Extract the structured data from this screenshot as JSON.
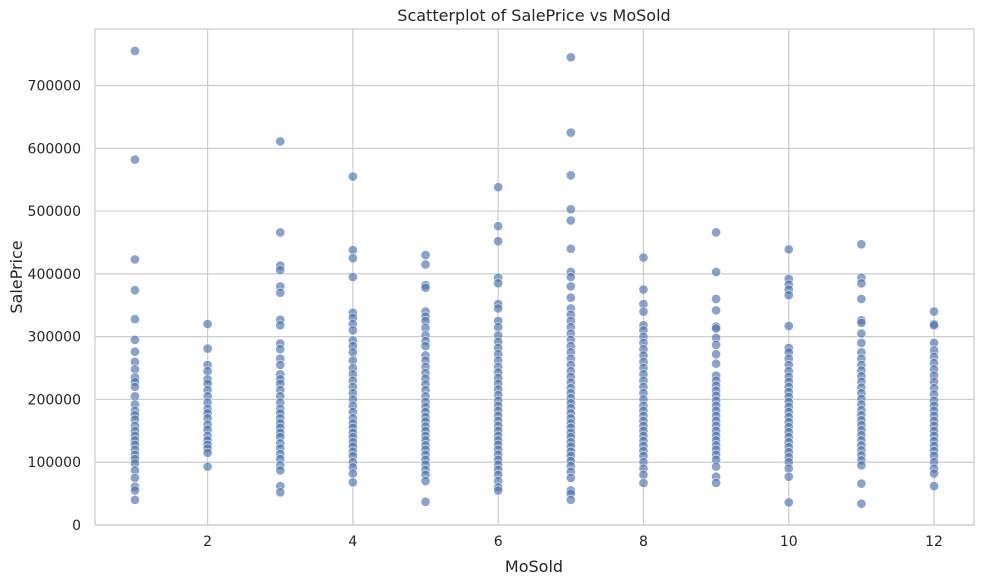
{
  "chart_data": {
    "type": "scatter",
    "title": "Scatterplot of SalePrice vs MoSold",
    "xlabel": "MoSold",
    "ylabel": "SalePrice",
    "xlim": [
      0.45,
      12.55
    ],
    "ylim": [
      0,
      790000
    ],
    "x_ticks": [
      2,
      4,
      6,
      8,
      10,
      12
    ],
    "x_tick_labels": [
      "2",
      "4",
      "6",
      "8",
      "10",
      "12"
    ],
    "y_ticks": [
      0,
      100000,
      200000,
      300000,
      400000,
      500000,
      600000,
      700000
    ],
    "y_tick_labels": [
      "0",
      "100000",
      "200000",
      "300000",
      "400000",
      "500000",
      "600000",
      "700000"
    ],
    "grid": true,
    "marker_color": "#4c72b0",
    "marker_opacity": 0.65,
    "points": [
      [
        1,
        755000
      ],
      [
        1,
        582000
      ],
      [
        1,
        423000
      ],
      [
        1,
        374000
      ],
      [
        1,
        328000
      ],
      [
        1,
        295000
      ],
      [
        1,
        276000
      ],
      [
        1,
        260000
      ],
      [
        1,
        248000
      ],
      [
        1,
        235000
      ],
      [
        1,
        228000
      ],
      [
        1,
        220000
      ],
      [
        1,
        205000
      ],
      [
        1,
        192000
      ],
      [
        1,
        182000
      ],
      [
        1,
        175000
      ],
      [
        1,
        168000
      ],
      [
        1,
        158000
      ],
      [
        1,
        150000
      ],
      [
        1,
        142000
      ],
      [
        1,
        135000
      ],
      [
        1,
        128000
      ],
      [
        1,
        120000
      ],
      [
        1,
        112000
      ],
      [
        1,
        105000
      ],
      [
        1,
        98000
      ],
      [
        1,
        87000
      ],
      [
        1,
        75000
      ],
      [
        1,
        61000
      ],
      [
        1,
        55000
      ],
      [
        1,
        40000
      ],
      [
        2,
        320000
      ],
      [
        2,
        281000
      ],
      [
        2,
        255000
      ],
      [
        2,
        245000
      ],
      [
        2,
        232000
      ],
      [
        2,
        225000
      ],
      [
        2,
        215000
      ],
      [
        2,
        205000
      ],
      [
        2,
        195000
      ],
      [
        2,
        185000
      ],
      [
        2,
        178000
      ],
      [
        2,
        170000
      ],
      [
        2,
        160000
      ],
      [
        2,
        152000
      ],
      [
        2,
        142000
      ],
      [
        2,
        135000
      ],
      [
        2,
        128000
      ],
      [
        2,
        122000
      ],
      [
        2,
        115000
      ],
      [
        2,
        93000
      ],
      [
        3,
        611000
      ],
      [
        3,
        466000
      ],
      [
        3,
        413000
      ],
      [
        3,
        406000
      ],
      [
        3,
        380000
      ],
      [
        3,
        370000
      ],
      [
        3,
        327000
      ],
      [
        3,
        318000
      ],
      [
        3,
        289000
      ],
      [
        3,
        280000
      ],
      [
        3,
        265000
      ],
      [
        3,
        255000
      ],
      [
        3,
        240000
      ],
      [
        3,
        232000
      ],
      [
        3,
        225000
      ],
      [
        3,
        215000
      ],
      [
        3,
        205000
      ],
      [
        3,
        195000
      ],
      [
        3,
        185000
      ],
      [
        3,
        178000
      ],
      [
        3,
        170000
      ],
      [
        3,
        162000
      ],
      [
        3,
        155000
      ],
      [
        3,
        147000
      ],
      [
        3,
        140000
      ],
      [
        3,
        130000
      ],
      [
        3,
        122000
      ],
      [
        3,
        113000
      ],
      [
        3,
        105000
      ],
      [
        3,
        95000
      ],
      [
        3,
        87000
      ],
      [
        3,
        62000
      ],
      [
        3,
        52000
      ],
      [
        4,
        555000
      ],
      [
        4,
        438000
      ],
      [
        4,
        425000
      ],
      [
        4,
        395000
      ],
      [
        4,
        338000
      ],
      [
        4,
        330000
      ],
      [
        4,
        320000
      ],
      [
        4,
        310000
      ],
      [
        4,
        294000
      ],
      [
        4,
        285000
      ],
      [
        4,
        275000
      ],
      [
        4,
        262000
      ],
      [
        4,
        250000
      ],
      [
        4,
        240000
      ],
      [
        4,
        230000
      ],
      [
        4,
        220000
      ],
      [
        4,
        210000
      ],
      [
        4,
        200000
      ],
      [
        4,
        190000
      ],
      [
        4,
        180000
      ],
      [
        4,
        170000
      ],
      [
        4,
        162000
      ],
      [
        4,
        155000
      ],
      [
        4,
        147000
      ],
      [
        4,
        140000
      ],
      [
        4,
        132000
      ],
      [
        4,
        125000
      ],
      [
        4,
        117000
      ],
      [
        4,
        110000
      ],
      [
        4,
        100000
      ],
      [
        4,
        92000
      ],
      [
        4,
        82000
      ],
      [
        4,
        68000
      ],
      [
        5,
        430000
      ],
      [
        5,
        415000
      ],
      [
        5,
        382000
      ],
      [
        5,
        378000
      ],
      [
        5,
        340000
      ],
      [
        5,
        332000
      ],
      [
        5,
        325000
      ],
      [
        5,
        314000
      ],
      [
        5,
        302000
      ],
      [
        5,
        293000
      ],
      [
        5,
        285000
      ],
      [
        5,
        270000
      ],
      [
        5,
        262000
      ],
      [
        5,
        252000
      ],
      [
        5,
        242000
      ],
      [
        5,
        233000
      ],
      [
        5,
        224000
      ],
      [
        5,
        215000
      ],
      [
        5,
        205000
      ],
      [
        5,
        196000
      ],
      [
        5,
        188000
      ],
      [
        5,
        180000
      ],
      [
        5,
        172000
      ],
      [
        5,
        165000
      ],
      [
        5,
        157000
      ],
      [
        5,
        150000
      ],
      [
        5,
        142000
      ],
      [
        5,
        135000
      ],
      [
        5,
        127000
      ],
      [
        5,
        120000
      ],
      [
        5,
        112000
      ],
      [
        5,
        104000
      ],
      [
        5,
        96000
      ],
      [
        5,
        88000
      ],
      [
        5,
        80000
      ],
      [
        5,
        70000
      ],
      [
        5,
        37000
      ],
      [
        6,
        538000
      ],
      [
        6,
        476000
      ],
      [
        6,
        452000
      ],
      [
        6,
        394000
      ],
      [
        6,
        385000
      ],
      [
        6,
        352000
      ],
      [
        6,
        345000
      ],
      [
        6,
        325000
      ],
      [
        6,
        315000
      ],
      [
        6,
        302000
      ],
      [
        6,
        292000
      ],
      [
        6,
        282000
      ],
      [
        6,
        272000
      ],
      [
        6,
        262000
      ],
      [
        6,
        252000
      ],
      [
        6,
        243000
      ],
      [
        6,
        234000
      ],
      [
        6,
        225000
      ],
      [
        6,
        216000
      ],
      [
        6,
        207000
      ],
      [
        6,
        198000
      ],
      [
        6,
        190000
      ],
      [
        6,
        182000
      ],
      [
        6,
        174000
      ],
      [
        6,
        166000
      ],
      [
        6,
        158000
      ],
      [
        6,
        150000
      ],
      [
        6,
        142000
      ],
      [
        6,
        135000
      ],
      [
        6,
        128000
      ],
      [
        6,
        120000
      ],
      [
        6,
        112000
      ],
      [
        6,
        104000
      ],
      [
        6,
        96000
      ],
      [
        6,
        88000
      ],
      [
        6,
        80000
      ],
      [
        6,
        70000
      ],
      [
        6,
        60000
      ],
      [
        6,
        55000
      ],
      [
        7,
        745000
      ],
      [
        7,
        625000
      ],
      [
        7,
        557000
      ],
      [
        7,
        503000
      ],
      [
        7,
        485000
      ],
      [
        7,
        440000
      ],
      [
        7,
        403000
      ],
      [
        7,
        395000
      ],
      [
        7,
        380000
      ],
      [
        7,
        362000
      ],
      [
        7,
        345000
      ],
      [
        7,
        335000
      ],
      [
        7,
        325000
      ],
      [
        7,
        315000
      ],
      [
        7,
        305000
      ],
      [
        7,
        295000
      ],
      [
        7,
        285000
      ],
      [
        7,
        275000
      ],
      [
        7,
        265000
      ],
      [
        7,
        255000
      ],
      [
        7,
        245000
      ],
      [
        7,
        236000
      ],
      [
        7,
        227000
      ],
      [
        7,
        218000
      ],
      [
        7,
        210000
      ],
      [
        7,
        202000
      ],
      [
        7,
        194000
      ],
      [
        7,
        186000
      ],
      [
        7,
        178000
      ],
      [
        7,
        170000
      ],
      [
        7,
        162000
      ],
      [
        7,
        155000
      ],
      [
        7,
        147000
      ],
      [
        7,
        140000
      ],
      [
        7,
        132000
      ],
      [
        7,
        125000
      ],
      [
        7,
        117000
      ],
      [
        7,
        110000
      ],
      [
        7,
        102000
      ],
      [
        7,
        94000
      ],
      [
        7,
        85000
      ],
      [
        7,
        75000
      ],
      [
        7,
        55000
      ],
      [
        7,
        50000
      ],
      [
        7,
        40000
      ],
      [
        8,
        426000
      ],
      [
        8,
        375000
      ],
      [
        8,
        352000
      ],
      [
        8,
        340000
      ],
      [
        8,
        318000
      ],
      [
        8,
        310000
      ],
      [
        8,
        300000
      ],
      [
        8,
        290000
      ],
      [
        8,
        280000
      ],
      [
        8,
        270000
      ],
      [
        8,
        260000
      ],
      [
        8,
        250000
      ],
      [
        8,
        240000
      ],
      [
        8,
        230000
      ],
      [
        8,
        220000
      ],
      [
        8,
        210000
      ],
      [
        8,
        200000
      ],
      [
        8,
        190000
      ],
      [
        8,
        182000
      ],
      [
        8,
        174000
      ],
      [
        8,
        166000
      ],
      [
        8,
        158000
      ],
      [
        8,
        150000
      ],
      [
        8,
        142000
      ],
      [
        8,
        134000
      ],
      [
        8,
        126000
      ],
      [
        8,
        118000
      ],
      [
        8,
        110000
      ],
      [
        8,
        100000
      ],
      [
        8,
        90000
      ],
      [
        8,
        80000
      ],
      [
        8,
        67000
      ],
      [
        9,
        466000
      ],
      [
        9,
        403000
      ],
      [
        9,
        360000
      ],
      [
        9,
        342000
      ],
      [
        9,
        316000
      ],
      [
        9,
        313000
      ],
      [
        9,
        298000
      ],
      [
        9,
        287000
      ],
      [
        9,
        272000
      ],
      [
        9,
        257000
      ],
      [
        9,
        238000
      ],
      [
        9,
        230000
      ],
      [
        9,
        222000
      ],
      [
        9,
        214000
      ],
      [
        9,
        206000
      ],
      [
        9,
        198000
      ],
      [
        9,
        190000
      ],
      [
        9,
        182000
      ],
      [
        9,
        174000
      ],
      [
        9,
        166000
      ],
      [
        9,
        158000
      ],
      [
        9,
        150000
      ],
      [
        9,
        142000
      ],
      [
        9,
        135000
      ],
      [
        9,
        127000
      ],
      [
        9,
        120000
      ],
      [
        9,
        112000
      ],
      [
        9,
        104000
      ],
      [
        9,
        93000
      ],
      [
        9,
        77000
      ],
      [
        9,
        67000
      ],
      [
        10,
        439000
      ],
      [
        10,
        392000
      ],
      [
        10,
        383000
      ],
      [
        10,
        375000
      ],
      [
        10,
        366000
      ],
      [
        10,
        317000
      ],
      [
        10,
        282000
      ],
      [
        10,
        275000
      ],
      [
        10,
        265000
      ],
      [
        10,
        255000
      ],
      [
        10,
        245000
      ],
      [
        10,
        236000
      ],
      [
        10,
        228000
      ],
      [
        10,
        220000
      ],
      [
        10,
        212000
      ],
      [
        10,
        204000
      ],
      [
        10,
        196000
      ],
      [
        10,
        188000
      ],
      [
        10,
        180000
      ],
      [
        10,
        172000
      ],
      [
        10,
        164000
      ],
      [
        10,
        156000
      ],
      [
        10,
        148000
      ],
      [
        10,
        140000
      ],
      [
        10,
        132000
      ],
      [
        10,
        124000
      ],
      [
        10,
        116000
      ],
      [
        10,
        108000
      ],
      [
        10,
        100000
      ],
      [
        10,
        90000
      ],
      [
        10,
        77000
      ],
      [
        10,
        36000
      ],
      [
        11,
        447000
      ],
      [
        11,
        394000
      ],
      [
        11,
        385000
      ],
      [
        11,
        360000
      ],
      [
        11,
        326000
      ],
      [
        11,
        322000
      ],
      [
        11,
        305000
      ],
      [
        11,
        290000
      ],
      [
        11,
        275000
      ],
      [
        11,
        265000
      ],
      [
        11,
        255000
      ],
      [
        11,
        246000
      ],
      [
        11,
        237000
      ],
      [
        11,
        228000
      ],
      [
        11,
        219000
      ],
      [
        11,
        210000
      ],
      [
        11,
        201000
      ],
      [
        11,
        192000
      ],
      [
        11,
        183000
      ],
      [
        11,
        175000
      ],
      [
        11,
        167000
      ],
      [
        11,
        159000
      ],
      [
        11,
        151000
      ],
      [
        11,
        143000
      ],
      [
        11,
        135000
      ],
      [
        11,
        127000
      ],
      [
        11,
        119000
      ],
      [
        11,
        111000
      ],
      [
        11,
        103000
      ],
      [
        11,
        95000
      ],
      [
        11,
        66000
      ],
      [
        11,
        34000
      ],
      [
        12,
        340000
      ],
      [
        12,
        320000
      ],
      [
        12,
        318000
      ],
      [
        12,
        290000
      ],
      [
        12,
        278000
      ],
      [
        12,
        268000
      ],
      [
        12,
        258000
      ],
      [
        12,
        248000
      ],
      [
        12,
        238000
      ],
      [
        12,
        228000
      ],
      [
        12,
        218000
      ],
      [
        12,
        208000
      ],
      [
        12,
        198000
      ],
      [
        12,
        190000
      ],
      [
        12,
        182000
      ],
      [
        12,
        174000
      ],
      [
        12,
        166000
      ],
      [
        12,
        158000
      ],
      [
        12,
        150000
      ],
      [
        12,
        142000
      ],
      [
        12,
        134000
      ],
      [
        12,
        126000
      ],
      [
        12,
        118000
      ],
      [
        12,
        110000
      ],
      [
        12,
        100000
      ],
      [
        12,
        90000
      ],
      [
        12,
        82000
      ],
      [
        12,
        62000
      ]
    ]
  }
}
